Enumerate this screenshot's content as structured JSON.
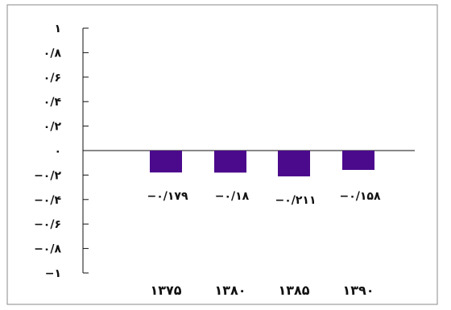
{
  "chart_data": {
    "type": "bar",
    "title": "",
    "xlabel": "",
    "ylabel": "",
    "categories": [
      "۱۳۷۵",
      "۱۳۸۰",
      "۱۳۸۵",
      "۱۳۹۰"
    ],
    "values": [
      -0.179,
      -0.18,
      -0.211,
      -0.158
    ],
    "data_labels": [
      "−۰/۱۷۹",
      "−۰/۱۸",
      "−۰/۲۱۱",
      "−۰/۱۵۸"
    ],
    "ylim": [
      -1,
      1
    ],
    "y_ticks": [
      1,
      0.8,
      0.6,
      0.4,
      0.2,
      0,
      -0.2,
      -0.4,
      -0.6,
      -0.8,
      -1
    ],
    "y_tick_labels": [
      "۱",
      "۰/۸",
      "۰/۶",
      "۰/۴",
      "۰/۲",
      "۰",
      "−۰/۲",
      "−۰/۴",
      "−۰/۶",
      "−۰/۸",
      "−۱"
    ],
    "grid": false,
    "legend": "none",
    "bar_color": "#4b0a8c"
  }
}
